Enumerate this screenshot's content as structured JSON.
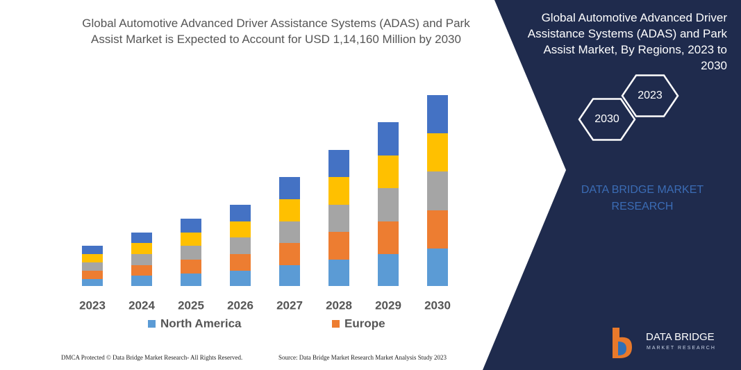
{
  "chart_data": {
    "type": "bar",
    "stacked": true,
    "title": "Global Automotive Advanced Driver Assistance Systems (ADAS) and Park Assist Market is Expected to Account for USD 1,14,160 Million by 2030",
    "categories": [
      "2023",
      "2024",
      "2025",
      "2026",
      "2027",
      "2028",
      "2029",
      "2030"
    ],
    "series": [
      {
        "name": "North America",
        "color": "#5b9bd5",
        "values": [
          10,
          15,
          18,
          22,
          30,
          38,
          46,
          54
        ]
      },
      {
        "name": "Europe",
        "color": "#ed7d31",
        "values": [
          12,
          15,
          20,
          24,
          32,
          40,
          47,
          55
        ]
      },
      {
        "color": "#a5a5a5",
        "values": [
          12,
          16,
          20,
          24,
          31,
          39,
          48,
          56
        ]
      },
      {
        "color": "#ffc000",
        "values": [
          12,
          16,
          19,
          23,
          32,
          40,
          47,
          55
        ]
      },
      {
        "color": "#4472c4",
        "values": [
          12,
          15,
          20,
          24,
          32,
          39,
          48,
          55
        ]
      }
    ]
  },
  "side_panel": {
    "title": "Global Automotive Advanced Driver Assistance Systems (ADAS) and Park Assist Market, By Regions, 2023 to 2030",
    "hexagons": [
      "2030",
      "2023"
    ],
    "brand": "DATA BRIDGE MARKET RESEARCH"
  },
  "logo": {
    "name": "DATA BRIDGE",
    "tagline": "MARKET RESEARCH"
  },
  "footer": {
    "dmca": "DMCA Protected © Data Bridge Market Research- All Rights Reserved.",
    "source": "Source: Data Bridge Market Research Market Analysis Study 2023"
  }
}
